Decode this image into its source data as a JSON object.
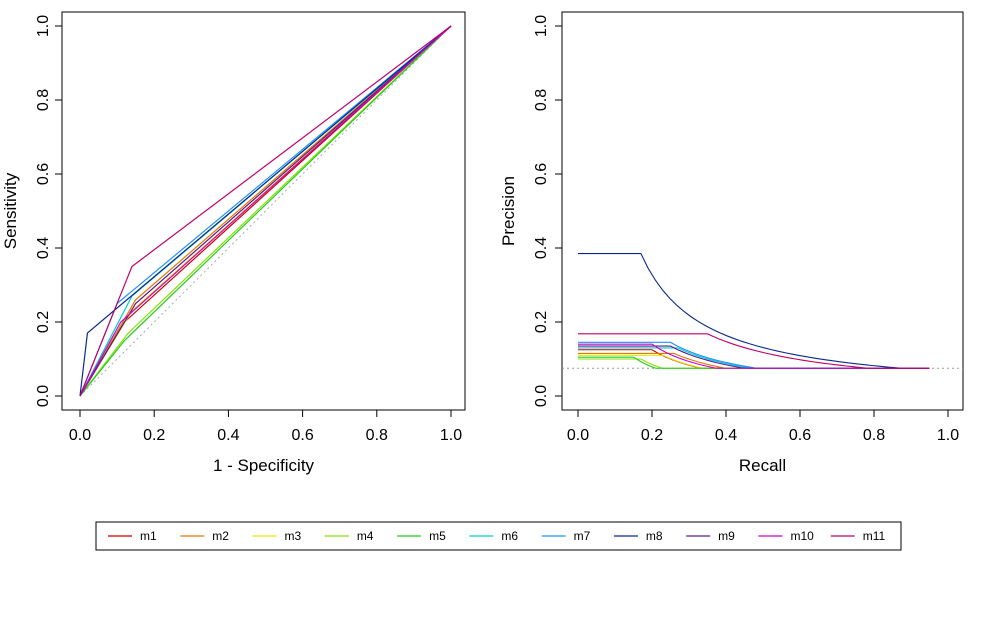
{
  "chart_data": [
    {
      "type": "line",
      "title": "",
      "xlabel": "1 - Specificity",
      "ylabel": "Sensitivity",
      "xlim": [
        0,
        1
      ],
      "ylim": [
        0,
        1
      ],
      "xticks": [
        "0.0",
        "0.2",
        "0.4",
        "0.6",
        "0.8",
        "1.0"
      ],
      "yticks": [
        "0.0",
        "0.2",
        "0.4",
        "0.6",
        "0.8",
        "1.0"
      ],
      "reference_line": {
        "from": [
          0,
          0
        ],
        "to": [
          1,
          1
        ],
        "style": "dotted"
      },
      "series": [
        {
          "name": "m1",
          "x": [
            0,
            0.12,
            1
          ],
          "y": [
            0,
            0.2,
            1
          ]
        },
        {
          "name": "m2",
          "x": [
            0,
            0.15,
            1
          ],
          "y": [
            0,
            0.26,
            1
          ]
        },
        {
          "name": "m3",
          "x": [
            0,
            0.14,
            1
          ],
          "y": [
            0,
            0.23,
            1
          ]
        },
        {
          "name": "m4",
          "x": [
            0,
            0.13,
            1
          ],
          "y": [
            0,
            0.17,
            1
          ]
        },
        {
          "name": "m5",
          "x": [
            0,
            0.12,
            1
          ],
          "y": [
            0,
            0.15,
            1
          ]
        },
        {
          "name": "m6",
          "x": [
            0,
            0.14,
            1
          ],
          "y": [
            0,
            0.27,
            1
          ]
        },
        {
          "name": "m7",
          "x": [
            0,
            0.1,
            1
          ],
          "y": [
            0,
            0.25,
            1
          ]
        },
        {
          "name": "m8",
          "x": [
            0,
            0.02,
            1
          ],
          "y": [
            0,
            0.17,
            1
          ]
        },
        {
          "name": "m9",
          "x": [
            0,
            0.15,
            1
          ],
          "y": [
            0,
            0.25,
            1
          ]
        },
        {
          "name": "m10",
          "x": [
            0,
            0.11,
            1
          ],
          "y": [
            0,
            0.2,
            1
          ]
        },
        {
          "name": "m11",
          "x": [
            0,
            0.14,
            1
          ],
          "y": [
            0,
            0.35,
            1
          ]
        }
      ]
    },
    {
      "type": "line",
      "title": "",
      "xlabel": "Recall",
      "ylabel": "Precision",
      "xlim": [
        0,
        1
      ],
      "ylim": [
        0,
        1
      ],
      "xticks": [
        "0.0",
        "0.2",
        "0.4",
        "0.6",
        "0.8",
        "1.0"
      ],
      "yticks": [
        "0.0",
        "0.2",
        "0.4",
        "0.6",
        "0.8",
        "1.0"
      ],
      "baseline": {
        "y": 0.075,
        "style": "dotted"
      },
      "series": [
        {
          "name": "m1",
          "precision_start": 0.125,
          "recall_break": 0.2
        },
        {
          "name": "m2",
          "precision_start": 0.115,
          "recall_break": 0.26
        },
        {
          "name": "m3",
          "precision_start": 0.11,
          "recall_break": 0.23
        },
        {
          "name": "m4",
          "precision_start": 0.1,
          "recall_break": 0.17
        },
        {
          "name": "m5",
          "precision_start": 0.105,
          "recall_break": 0.15
        },
        {
          "name": "m6",
          "precision_start": 0.13,
          "recall_break": 0.27
        },
        {
          "name": "m7",
          "precision_start": 0.145,
          "recall_break": 0.25
        },
        {
          "name": "m8",
          "precision_start": 0.385,
          "recall_break": 0.17
        },
        {
          "name": "m9",
          "precision_start": 0.135,
          "recall_break": 0.25
        },
        {
          "name": "m10",
          "precision_start": 0.14,
          "recall_break": 0.2
        },
        {
          "name": "m11",
          "precision_start": 0.168,
          "recall_break": 0.35
        }
      ],
      "end_recall": 0.95,
      "end_precision": 0.075
    }
  ],
  "legend": {
    "placement": "bottom",
    "items": [
      {
        "name": "m1",
        "color": "#cc0000"
      },
      {
        "name": "m2",
        "color": "#e07a00"
      },
      {
        "name": "m3",
        "color": "#e6e600"
      },
      {
        "name": "m4",
        "color": "#88e000"
      },
      {
        "name": "m5",
        "color": "#22cc22"
      },
      {
        "name": "m6",
        "color": "#00d0d0"
      },
      {
        "name": "m7",
        "color": "#1e90ff"
      },
      {
        "name": "m8",
        "color": "#0a2a8a"
      },
      {
        "name": "m9",
        "color": "#5a1a8a"
      },
      {
        "name": "m10",
        "color": "#cc00cc"
      },
      {
        "name": "m11",
        "color": "#c0006a"
      }
    ]
  }
}
